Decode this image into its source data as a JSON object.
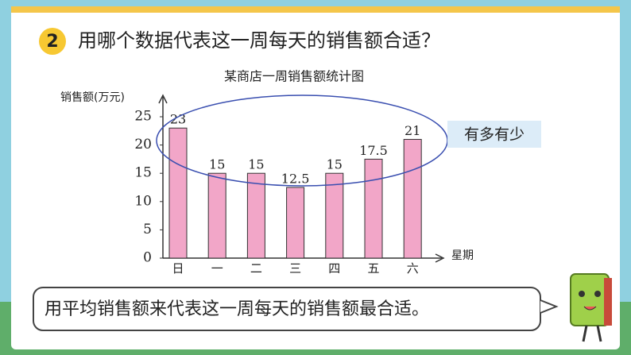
{
  "question": {
    "number": "2",
    "text": "用哪个数据代表这一周每天的销售额合适？"
  },
  "chart_data": {
    "type": "bar",
    "title": "某商店一周销售额统计图",
    "y_label": "销售额(万元)",
    "x_label": "星期",
    "categories": [
      "日",
      "一",
      "二",
      "三",
      "四",
      "五",
      "六"
    ],
    "values": [
      23,
      15,
      15,
      12.5,
      15,
      17.5,
      21
    ],
    "color": "#f2a6c8",
    "ylim": [
      0,
      28
    ],
    "yticks": [
      0,
      5,
      10,
      15,
      20,
      25
    ],
    "annotation": "有多有少"
  },
  "answer": "用平均销售额来代表这一周每天的销售额最合适。"
}
